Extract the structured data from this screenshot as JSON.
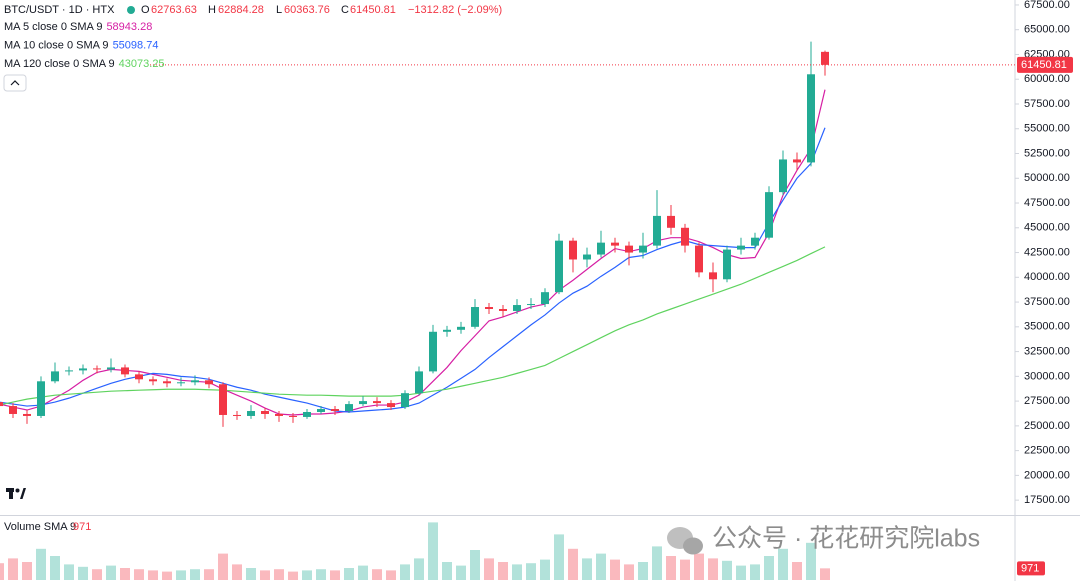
{
  "chart_data": {
    "type": "candlestick",
    "title": "BTC/USDT · 1D · HTX",
    "ohlc_labels": [
      "O",
      "H",
      "L",
      "C"
    ],
    "change_label": "−1312.82 (−2.09%)",
    "up_color": "#22ab94",
    "down_color": "#f23645",
    "open": [
      27400,
      27000,
      26200,
      26000,
      29500,
      30500,
      30600,
      30800,
      30700,
      30900,
      30200,
      29700,
      29500,
      29300,
      29400,
      29600,
      29200,
      26100,
      26000,
      26500,
      26200,
      26000,
      25900,
      26400,
      26700,
      26500,
      27200,
      27500,
      27300,
      26900,
      28300,
      30500,
      34500,
      34700,
      35000,
      37000,
      36800,
      36600,
      37200,
      37300,
      38500,
      43700,
      41800,
      42300,
      43500,
      43200,
      42500,
      43200,
      46200,
      45000,
      43200,
      40500,
      39800,
      42800,
      43200,
      44000,
      48600,
      51900,
      51600,
      62763.63
    ],
    "high": [
      27800,
      27300,
      26600,
      30000,
      31400,
      31000,
      31200,
      31100,
      31800,
      31200,
      30500,
      30000,
      29800,
      29900,
      30100,
      29900,
      29400,
      26500,
      27100,
      26800,
      26500,
      26300,
      26700,
      27000,
      27000,
      27500,
      28000,
      27900,
      27600,
      28600,
      31000,
      35200,
      35100,
      35500,
      37800,
      37400,
      37200,
      37800,
      37900,
      38900,
      44400,
      44000,
      43000,
      44700,
      44000,
      43600,
      44500,
      48800,
      47300,
      45400,
      43500,
      41500,
      43200,
      44000,
      44500,
      49200,
      52800,
      52600,
      63800,
      62884.28
    ],
    "low": [
      26600,
      25800,
      25200,
      25800,
      29300,
      30100,
      30200,
      30300,
      30400,
      29900,
      29300,
      29100,
      28900,
      29000,
      29100,
      28800,
      24900,
      25600,
      25700,
      25700,
      25400,
      25300,
      25700,
      26200,
      26100,
      26300,
      27000,
      26900,
      26600,
      26700,
      28100,
      30300,
      34000,
      34300,
      34800,
      36300,
      36000,
      36300,
      36800,
      37000,
      38300,
      40500,
      41000,
      42000,
      42500,
      41200,
      41900,
      42900,
      44300,
      42500,
      40000,
      38500,
      39500,
      42300,
      42800,
      43800,
      48300,
      50800,
      51200,
      60363.76
    ],
    "close": [
      27000,
      26200,
      26000,
      29500,
      30500,
      30600,
      30800,
      30700,
      30900,
      30200,
      29700,
      29500,
      29300,
      29400,
      29600,
      29200,
      26100,
      26000,
      26500,
      26200,
      26000,
      25900,
      26400,
      26700,
      26500,
      27200,
      27500,
      27300,
      26900,
      28300,
      30500,
      34500,
      34700,
      35000,
      37000,
      36800,
      36600,
      37200,
      37300,
      38500,
      43700,
      41800,
      42300,
      43500,
      43200,
      42500,
      43200,
      46200,
      45000,
      43200,
      40500,
      39800,
      42800,
      43200,
      44000,
      48600,
      51900,
      51600,
      60500,
      61450.81
    ],
    "series": [
      {
        "name": "MA 5 close 0 SMA 9",
        "color": "#d61fa4",
        "values": [
          27200,
          26900,
          26600,
          27000,
          27800,
          28600,
          29600,
          30400,
          30700,
          30600,
          30500,
          30200,
          29900,
          29600,
          29500,
          29400,
          28700,
          28100,
          27500,
          26800,
          26200,
          26100,
          26200,
          26200,
          26300,
          26500,
          26900,
          27100,
          27100,
          27400,
          28100,
          29500,
          30900,
          32600,
          34100,
          35600,
          36000,
          36500,
          37000,
          37300,
          38700,
          39700,
          40800,
          41900,
          42900,
          42600,
          42900,
          43700,
          44000,
          44000,
          43600,
          43000,
          42300,
          41900,
          42000,
          44500,
          48300,
          50800,
          53000,
          58943.28
        ]
      },
      {
        "name": "MA 10 close 0 SMA 9",
        "color": "#2962ff",
        "values": [
          27400,
          27200,
          27000,
          27100,
          27400,
          27800,
          28300,
          28800,
          29300,
          29700,
          30000,
          30300,
          30200,
          30000,
          29900,
          29700,
          29300,
          28900,
          28600,
          28200,
          27900,
          27600,
          27300,
          26900,
          26500,
          26400,
          26500,
          26600,
          26700,
          26900,
          27300,
          28100,
          28900,
          29800,
          30700,
          31900,
          33000,
          34100,
          35200,
          36200,
          37400,
          38400,
          39100,
          40100,
          41000,
          42000,
          42200,
          42800,
          43300,
          43700,
          43300,
          43200,
          43100,
          43000,
          43000,
          45500,
          47800,
          50000,
          51500,
          55098.74
        ]
      },
      {
        "name": "MA 120 close 0 SMA 9",
        "color": "#5fd35f",
        "values": [
          27100,
          27400,
          27700,
          27900,
          28100,
          28200,
          28300,
          28400,
          28500,
          28550,
          28600,
          28650,
          28700,
          28700,
          28700,
          28650,
          28600,
          28500,
          28400,
          28300,
          28200,
          28150,
          28100,
          28100,
          28050,
          28000,
          28000,
          28000,
          28000,
          28100,
          28300,
          28500,
          28700,
          29000,
          29300,
          29600,
          29900,
          30300,
          30700,
          31100,
          31800,
          32500,
          33200,
          33900,
          34600,
          35200,
          35700,
          36300,
          36800,
          37300,
          37800,
          38300,
          38800,
          39300,
          39900,
          40500,
          41100,
          41700,
          42400,
          43073.25
        ]
      }
    ],
    "ylim": [
      16000,
      68000
    ],
    "yticks": [
      {
        "value": 17500,
        "label": "17500.00"
      },
      {
        "value": 20000,
        "label": "20000.00"
      },
      {
        "value": 22500,
        "label": "22500.00"
      },
      {
        "value": 25000,
        "label": "25000.00"
      },
      {
        "value": 27500,
        "label": "27500.00"
      },
      {
        "value": 30000,
        "label": "30000.00"
      },
      {
        "value": 32500,
        "label": "32500.00"
      },
      {
        "value": 35000,
        "label": "35000.00"
      },
      {
        "value": 37500,
        "label": "37500.00"
      },
      {
        "value": 40000,
        "label": "40000.00"
      },
      {
        "value": 42500,
        "label": "42500.00"
      },
      {
        "value": 45000,
        "label": "45000.00"
      },
      {
        "value": 47500,
        "label": "47500.00"
      },
      {
        "value": 50000,
        "label": "50000.00"
      },
      {
        "value": 52500,
        "label": "52500.00"
      },
      {
        "value": 55000,
        "label": "55000.00"
      },
      {
        "value": 57500,
        "label": "57500.00"
      },
      {
        "value": 60000,
        "label": "60000.00"
      },
      {
        "value": 62500,
        "label": "62500.00"
      },
      {
        "value": 65000,
        "label": "65000.00"
      },
      {
        "value": 67500,
        "label": "67500.00"
      }
    ],
    "volume": {
      "name": "Volume SMA 9",
      "ylim": [
        0,
        5000
      ],
      "values": [
        1400,
        1800,
        1500,
        2600,
        2000,
        1300,
        1100,
        900,
        1200,
        1000,
        900,
        800,
        700,
        800,
        900,
        900,
        2200,
        1300,
        1000,
        800,
        900,
        700,
        800,
        900,
        800,
        1000,
        1200,
        900,
        800,
        1300,
        1800,
        4800,
        1500,
        1200,
        2500,
        1800,
        1500,
        1300,
        1400,
        1700,
        3800,
        2600,
        1800,
        2200,
        1700,
        1300,
        1500,
        2800,
        2000,
        1700,
        2200,
        1800,
        1600,
        1200,
        1300,
        2000,
        2600,
        1500,
        3100,
        971
      ]
    },
    "watermark": "公众号 · 花花研究院labs"
  }
}
